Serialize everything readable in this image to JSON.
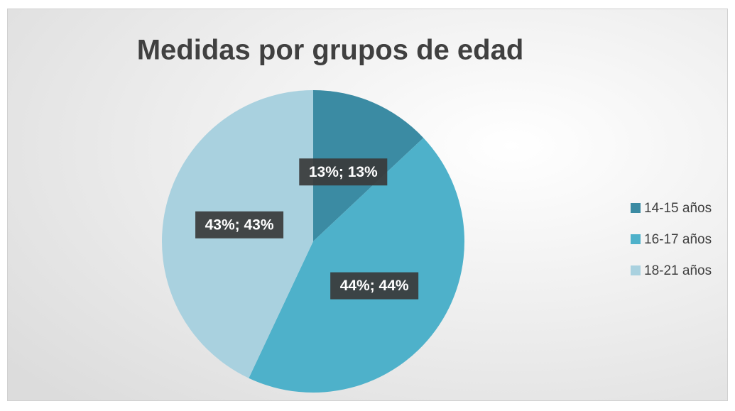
{
  "chart_data": {
    "type": "pie",
    "title": "Medidas por grupos de edad",
    "categories": [
      "14-15 años",
      "16-17 años",
      "18-21 años"
    ],
    "values": [
      13,
      44,
      43
    ],
    "value_labels": [
      "13%; 13%",
      "44%; 44%",
      "43%; 43%"
    ],
    "colors": [
      "#3b8ba3",
      "#4eb1ca",
      "#a9d1df"
    ],
    "legend": "right"
  }
}
